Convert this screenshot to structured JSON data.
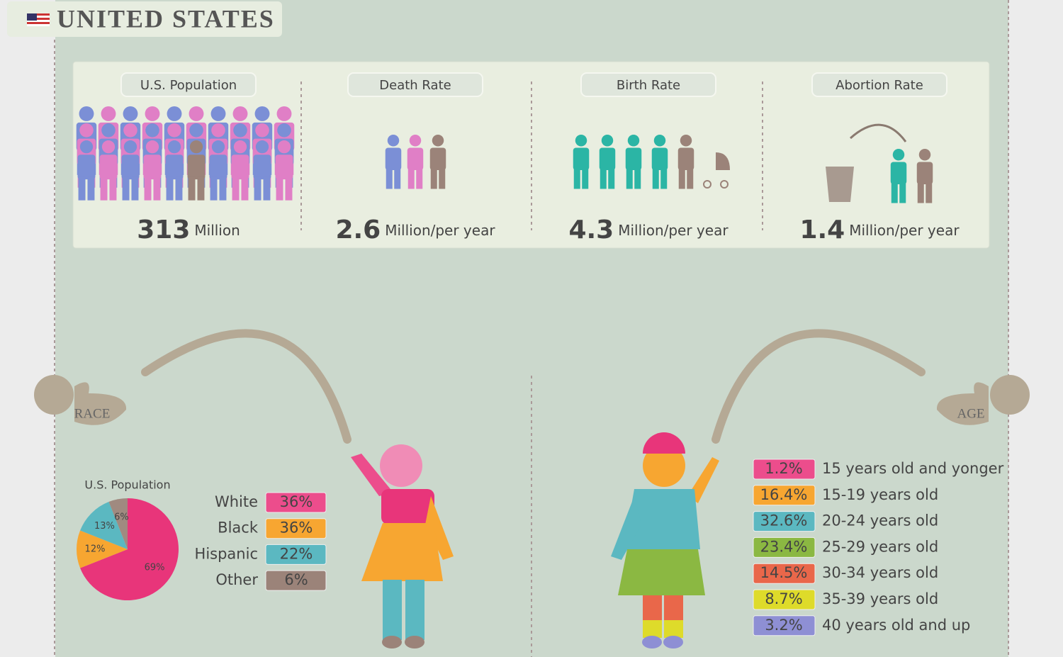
{
  "header": {
    "title": "UNITED STATES"
  },
  "stats": [
    {
      "label": "U.S. Population",
      "value": "313",
      "unit": "Million"
    },
    {
      "label": "Death Rate",
      "value": "2.6",
      "unit": "Million/per year"
    },
    {
      "label": "Birth Rate",
      "value": "4.3",
      "unit": "Million/per year"
    },
    {
      "label": "Abortion Rate",
      "value": "1.4",
      "unit": "Million/per year"
    }
  ],
  "race": {
    "badge": "RACE",
    "pie": {
      "type": "pie",
      "title": "U.S. Population",
      "values": [
        69,
        12,
        13,
        6
      ],
      "value_labels": [
        "69%",
        "12%",
        "13%",
        "6%"
      ],
      "colors": [
        "#e8357a",
        "#f7a631",
        "#5bb8c1",
        "#a08a80"
      ]
    },
    "legend": [
      {
        "name": "White",
        "value": "36%",
        "color": "#ec4d8c"
      },
      {
        "name": "Black",
        "value": "36%",
        "color": "#f7a631"
      },
      {
        "name": "Hispanic",
        "value": "22%",
        "color": "#5bb8c1"
      },
      {
        "name": "Other",
        "value": "6%",
        "color": "#9b8379"
      }
    ]
  },
  "age": {
    "badge": "AGE",
    "legend": [
      {
        "value": "1.2%",
        "label": "15 years old and yonger",
        "color": "#ec4d8c"
      },
      {
        "value": "16.4%",
        "label": "15-19 years old",
        "color": "#f7a631"
      },
      {
        "value": "32.6%",
        "label": "20-24 years old",
        "color": "#5bb8c1"
      },
      {
        "value": "23.4%",
        "label": "25-29 years old",
        "color": "#8bb842"
      },
      {
        "value": "14.5%",
        "label": "30-34 years old",
        "color": "#e9674a"
      },
      {
        "value": "8.7%",
        "label": "35-39 years old",
        "color": "#dedb2a"
      },
      {
        "value": "3.2%",
        "label": "40 years old and up",
        "color": "#8e8fd4"
      }
    ]
  }
}
